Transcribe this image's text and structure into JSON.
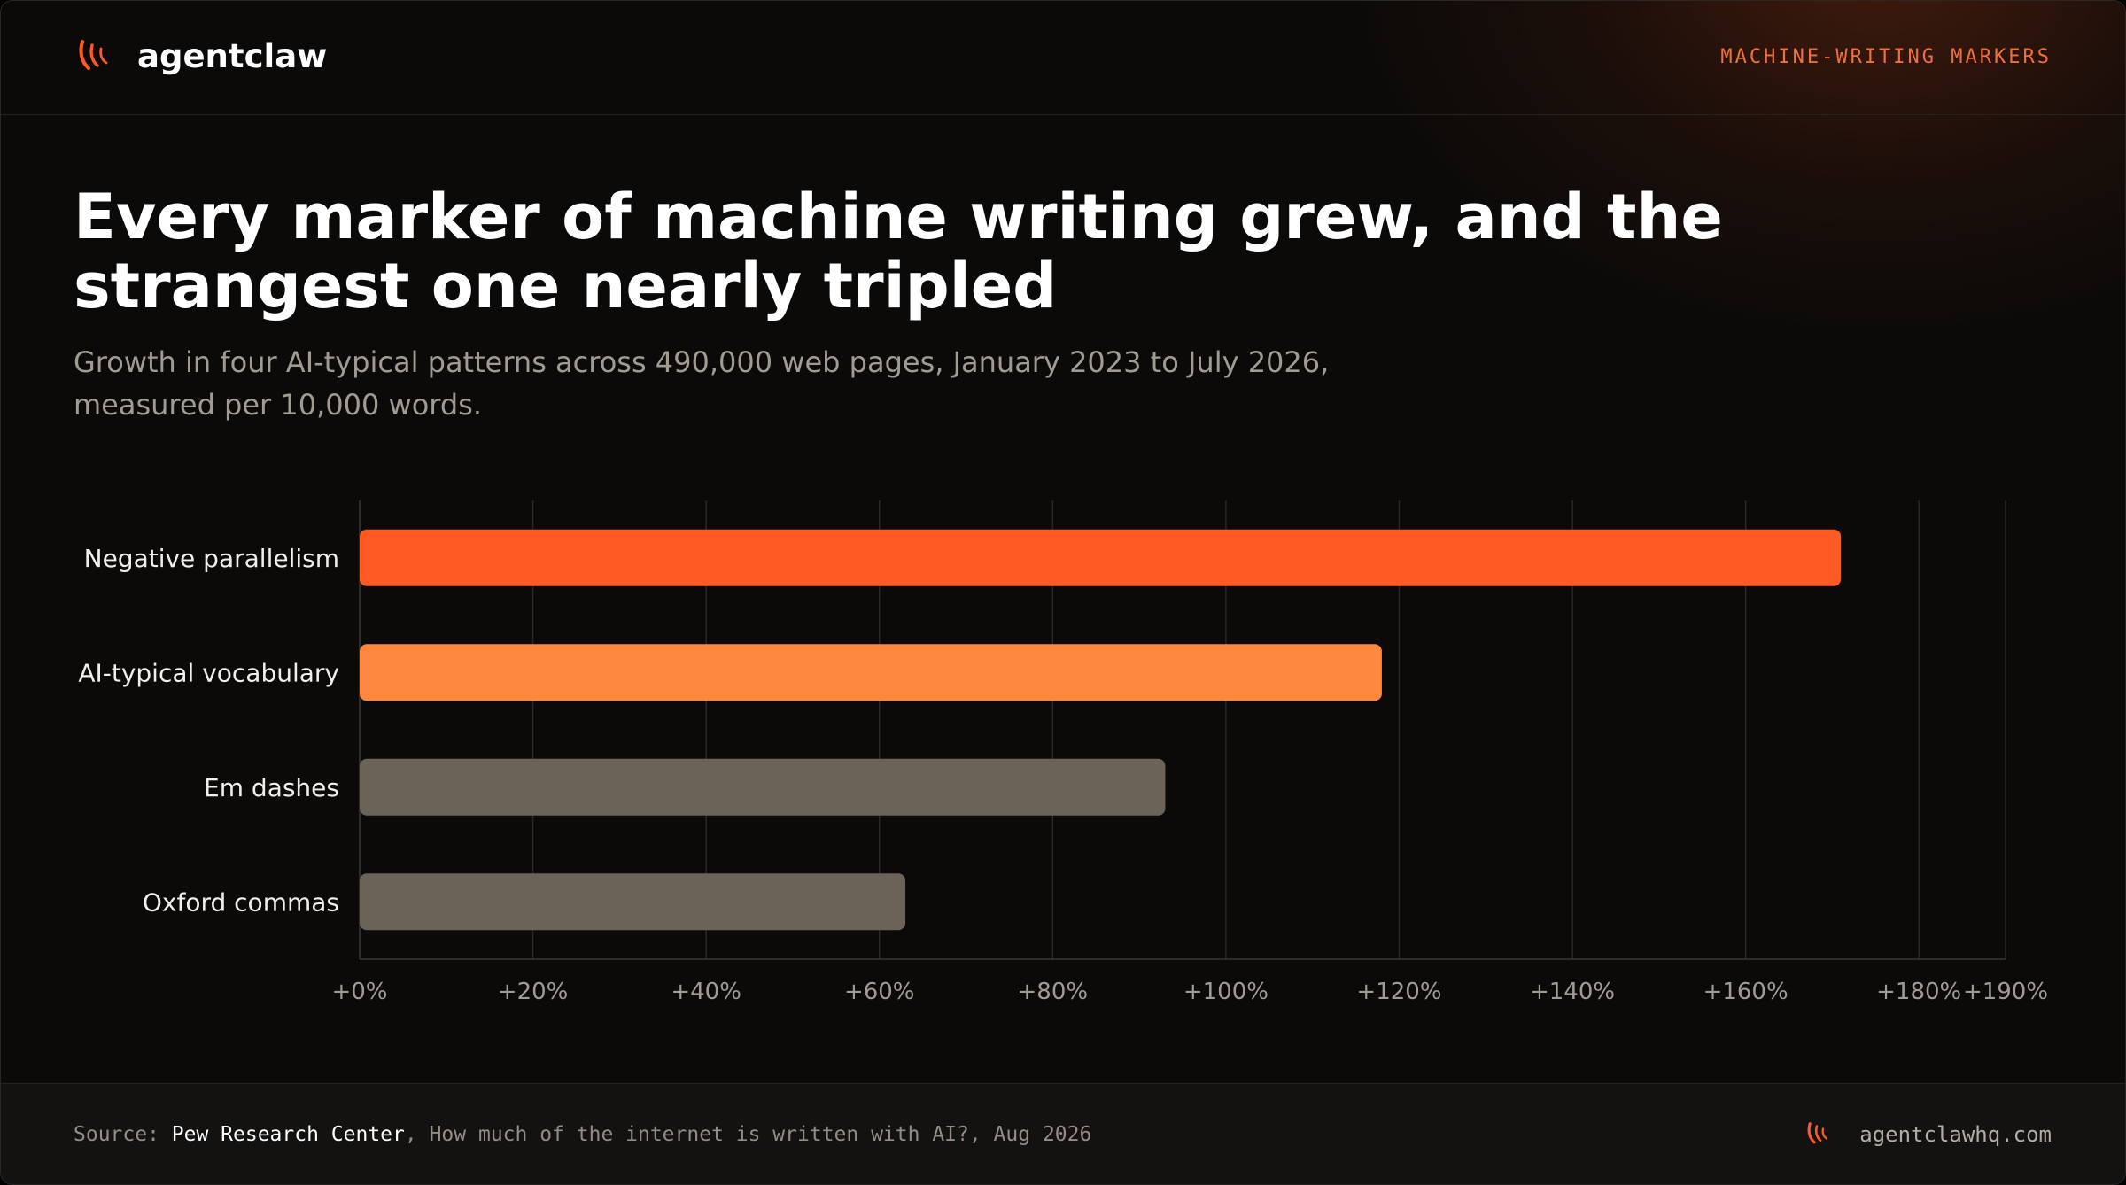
{
  "header": {
    "brand": "agentclaw",
    "tag": "MACHINE-WRITING MARKERS"
  },
  "title": "Every marker of machine writing grew, and the strangest one nearly tripled",
  "subtitle": "Growth in four AI-typical patterns across 490,000 web pages, January 2023 to July 2026, measured per 10,000 words.",
  "chart_data": {
    "type": "bar",
    "orientation": "horizontal",
    "categories": [
      "Negative parallelism",
      "AI-typical vocabulary",
      "Em dashes",
      "Oxford commas"
    ],
    "values": [
      171,
      118,
      93,
      63
    ],
    "unit": "percent growth",
    "xlim": [
      0,
      190
    ],
    "xticks": [
      0,
      20,
      40,
      60,
      80,
      100,
      120,
      140,
      160,
      180,
      190
    ],
    "xtick_labels": [
      "+0%",
      "+20%",
      "+40%",
      "+60%",
      "+80%",
      "+100%",
      "+120%",
      "+140%",
      "+160%",
      "+180%",
      "+190%"
    ],
    "bar_colors": [
      "#ff5a24",
      "#ff8840",
      "#6b6358",
      "#6b6358"
    ],
    "grid": true,
    "grid_color": "#2b2825"
  },
  "footer": {
    "source_prefix": "Source: ",
    "source_org": "Pew Research Center",
    "source_rest": ", How much of the internet is written with AI?, Aug 2026",
    "website": "agentclawhq.com"
  },
  "colors": {
    "accent": "#ff5a24",
    "accent_light": "#ff8840",
    "muted_bar": "#6b6358",
    "background": "#0b0a09"
  },
  "icons": {
    "logo": "claw-marks-icon"
  }
}
